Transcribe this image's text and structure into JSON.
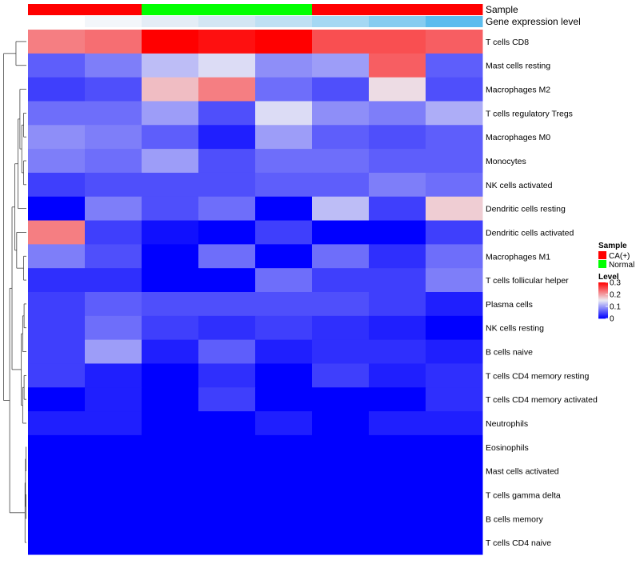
{
  "chart_data": {
    "type": "heatmap",
    "annotation_tracks": {
      "sample": {
        "label": "Sample",
        "values": [
          "CA(+)",
          "CA(+)",
          "Normal",
          "Normal",
          "Normal",
          "CA(+)",
          "CA(+)",
          "CA(+)"
        ]
      },
      "gene_expression": {
        "label": "Gene expression level",
        "values": [
          0.0,
          0.05,
          0.12,
          0.2,
          0.3,
          0.45,
          0.6,
          0.8
        ],
        "colors": [
          "#ffffff",
          "#f3f6fa",
          "#e4edf6",
          "#d3e6f3",
          "#bfe0f3",
          "#a5d8f3",
          "#86ccf0",
          "#5bbcee"
        ]
      }
    },
    "rows": [
      "T cells CD8",
      "Mast cells resting",
      "Macrophages M2",
      "T cells regulatory  Tregs",
      "Macrophages M0",
      "Monocytes",
      "NK cells activated",
      "Dendritic cells resting",
      "Dendritic cells activated",
      "Macrophages M1",
      "T cells follicular helper",
      "Plasma cells",
      "NK cells resting",
      "B cells naive",
      "T cells CD4 memory resting",
      "T cells CD4 memory activated",
      "Neutrophils",
      "Eosinophils",
      "Mast cells activated",
      "T cells gamma delta",
      "B cells memory",
      "T cells CD4 naive"
    ],
    "values": [
      [
        0.22,
        0.23,
        0.3,
        0.29,
        0.3,
        0.25,
        0.25,
        0.24
      ],
      [
        0.06,
        0.08,
        0.12,
        0.14,
        0.09,
        0.1,
        0.24,
        0.06
      ],
      [
        0.04,
        0.05,
        0.18,
        0.22,
        0.07,
        0.05,
        0.16,
        0.05
      ],
      [
        0.07,
        0.07,
        0.1,
        0.05,
        0.14,
        0.09,
        0.08,
        0.11
      ],
      [
        0.09,
        0.08,
        0.06,
        0.02,
        0.1,
        0.06,
        0.05,
        0.06
      ],
      [
        0.08,
        0.07,
        0.1,
        0.05,
        0.07,
        0.07,
        0.06,
        0.06
      ],
      [
        0.04,
        0.05,
        0.05,
        0.05,
        0.06,
        0.06,
        0.08,
        0.07
      ],
      [
        0.0,
        0.08,
        0.05,
        0.07,
        0.0,
        0.12,
        0.04,
        0.17
      ],
      [
        0.22,
        0.04,
        0.01,
        0.0,
        0.04,
        0.0,
        0.0,
        0.04
      ],
      [
        0.08,
        0.05,
        0.0,
        0.07,
        0.0,
        0.07,
        0.03,
        0.07
      ],
      [
        0.03,
        0.03,
        0.0,
        0.0,
        0.07,
        0.04,
        0.04,
        0.08
      ],
      [
        0.04,
        0.06,
        0.05,
        0.05,
        0.05,
        0.05,
        0.04,
        0.02
      ],
      [
        0.04,
        0.07,
        0.04,
        0.03,
        0.04,
        0.03,
        0.02,
        0.0
      ],
      [
        0.04,
        0.1,
        0.02,
        0.06,
        0.02,
        0.03,
        0.03,
        0.02
      ],
      [
        0.04,
        0.02,
        0.0,
        0.03,
        0.0,
        0.04,
        0.02,
        0.03
      ],
      [
        0.0,
        0.02,
        0.0,
        0.04,
        0.0,
        0.0,
        0.0,
        0.03
      ],
      [
        0.02,
        0.02,
        0.0,
        0.0,
        0.02,
        0.0,
        0.02,
        0.02
      ],
      [
        0.0,
        0.0,
        0.0,
        0.0,
        0.0,
        0.0,
        0.0,
        0.0
      ],
      [
        0.0,
        0.0,
        0.0,
        0.0,
        0.0,
        0.0,
        0.0,
        0.0
      ],
      [
        0.0,
        0.0,
        0.0,
        0.0,
        0.0,
        0.0,
        0.0,
        0.0
      ],
      [
        0.0,
        0.0,
        0.0,
        0.0,
        0.0,
        0.0,
        0.0,
        0.0
      ],
      [
        0.0,
        0.0,
        0.0,
        0.0,
        0.0,
        0.0,
        0.0,
        0.0
      ]
    ],
    "color_scale": {
      "low": "#0000ff",
      "mid": "#ececf4",
      "high": "#ff0000",
      "mid_value": 0.15,
      "range": [
        0,
        0.3
      ]
    },
    "legend": {
      "sample": {
        "title": "Sample",
        "items": [
          {
            "label": "CA(+)",
            "color": "#ff0000"
          },
          {
            "label": "Normal",
            "color": "#00ff00"
          }
        ]
      },
      "level": {
        "title": "Level",
        "ticks": [
          "0.3",
          "0.2",
          "0.1",
          "0"
        ],
        "tick_values": [
          0.3,
          0.2,
          0.1,
          0
        ]
      }
    },
    "dendrogram": "row",
    "legend_position": "right"
  }
}
